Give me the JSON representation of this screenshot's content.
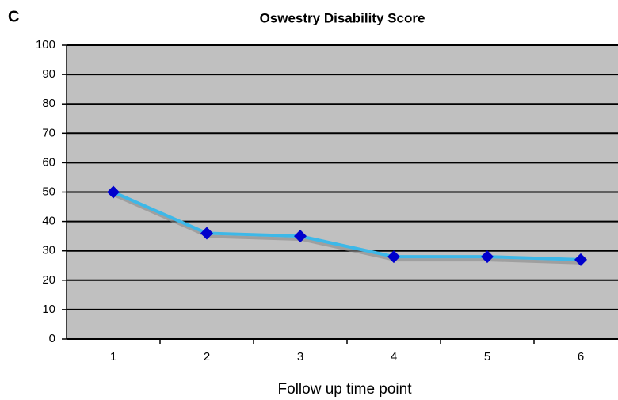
{
  "chart_data": {
    "type": "line",
    "panel_label": "C",
    "title": "Oswestry Disability Score",
    "x_label": "Follow up time point",
    "categories": [
      "1",
      "2",
      "3",
      "4",
      "5",
      "6"
    ],
    "series": [
      {
        "name": "Oswestry Disability Score",
        "line_color": "#3db8e8",
        "color": "#0000cc",
        "values": [
          50,
          36,
          35,
          28,
          28,
          27
        ]
      }
    ],
    "ylim": [
      0,
      100
    ],
    "yticks": [
      0,
      10,
      20,
      30,
      40,
      50,
      60,
      70,
      80,
      90,
      100
    ],
    "grid": true,
    "plot_background": "#c0c0c0"
  }
}
